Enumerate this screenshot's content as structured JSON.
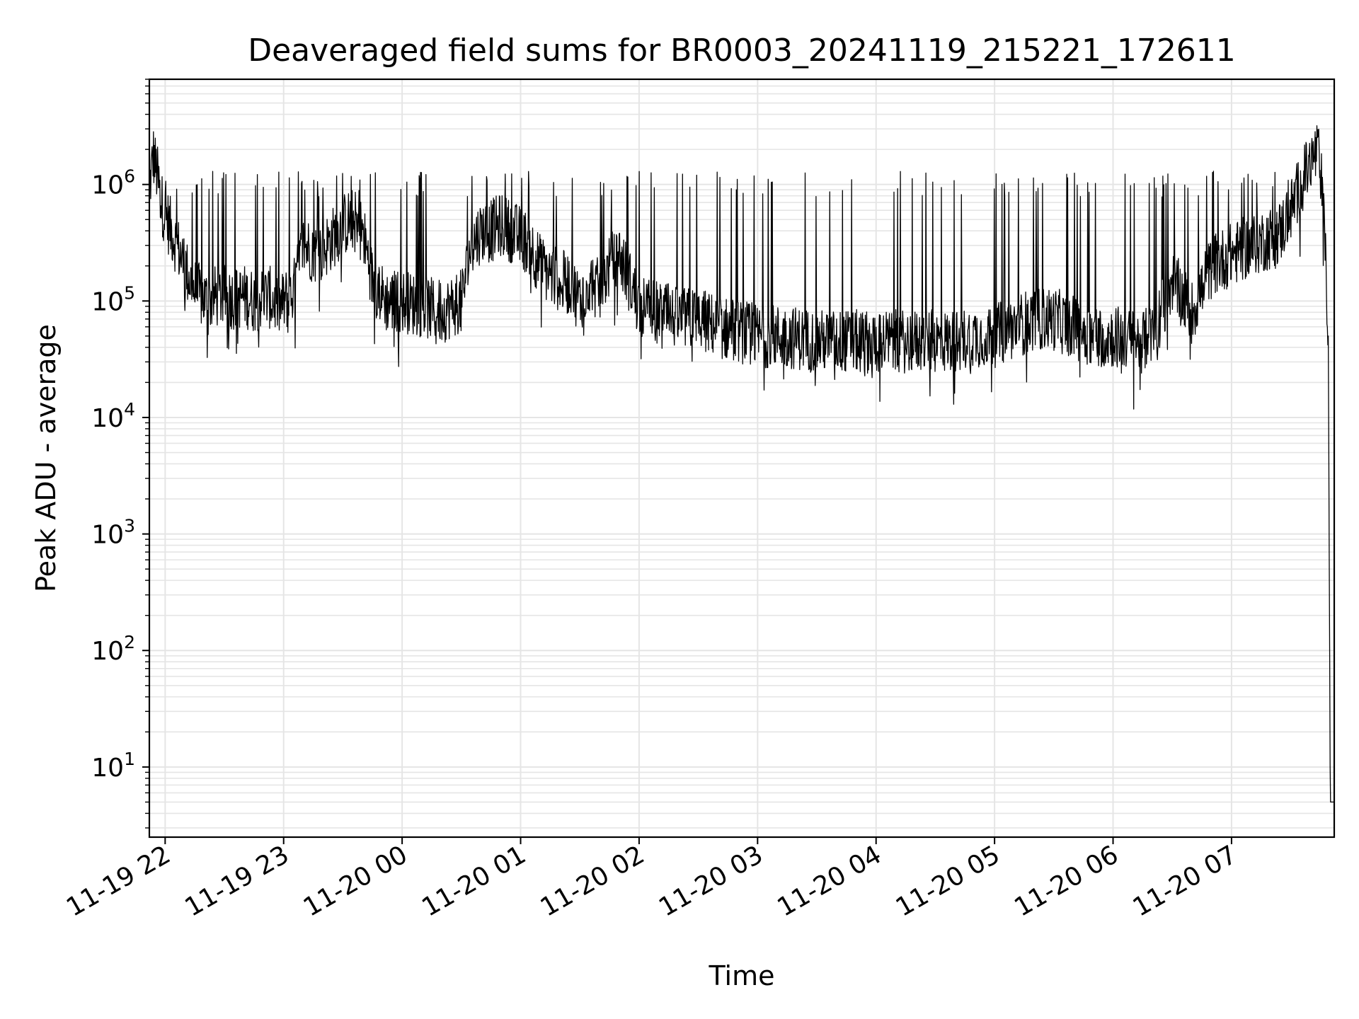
{
  "chart_data": {
    "type": "line",
    "title": "Deaveraged field sums for BR0003_20241119_215221_172611",
    "xlabel": "Time",
    "ylabel": "Peak ADU - average",
    "yscale": "log",
    "ylim": [
      2.5,
      8000000
    ],
    "xlim": [
      "2024-11-19 21:52",
      "2024-11-20 07:52"
    ],
    "grid": true,
    "line_color": "#000000",
    "grid_color": "#e5e5e5",
    "x_ticks": [
      {
        "value": "2024-11-19 22:00",
        "label": "11-19 22"
      },
      {
        "value": "2024-11-19 23:00",
        "label": "11-19 23"
      },
      {
        "value": "2024-11-20 00:00",
        "label": "11-20 00"
      },
      {
        "value": "2024-11-20 01:00",
        "label": "11-20 01"
      },
      {
        "value": "2024-11-20 02:00",
        "label": "11-20 02"
      },
      {
        "value": "2024-11-20 03:00",
        "label": "11-20 03"
      },
      {
        "value": "2024-11-20 04:00",
        "label": "11-20 04"
      },
      {
        "value": "2024-11-20 05:00",
        "label": "11-20 05"
      },
      {
        "value": "2024-11-20 06:00",
        "label": "11-20 06"
      },
      {
        "value": "2024-11-20 07:00",
        "label": "11-20 07"
      }
    ],
    "y_ticks": [
      {
        "value": 10,
        "base": "10",
        "exp": "1"
      },
      {
        "value": 100,
        "base": "10",
        "exp": "2"
      },
      {
        "value": 1000,
        "base": "10",
        "exp": "3"
      },
      {
        "value": 10000,
        "base": "10",
        "exp": "4"
      },
      {
        "value": 100000,
        "base": "10",
        "exp": "5"
      },
      {
        "value": 1000000,
        "base": "10",
        "exp": "6"
      }
    ],
    "series": [
      {
        "x": [
          "2024-11-19 21:52",
          "2024-11-19 21:54",
          "2024-11-19 21:56",
          "2024-11-19 21:58",
          "2024-11-19 22:02",
          "2024-11-19 22:06",
          "2024-11-19 22:10",
          "2024-11-19 22:14",
          "2024-11-19 22:18",
          "2024-11-19 22:22",
          "2024-11-19 22:26",
          "2024-11-19 22:30",
          "2024-11-19 22:35",
          "2024-11-19 22:40",
          "2024-11-19 22:45",
          "2024-11-19 22:52",
          "2024-11-19 22:58",
          "2024-11-19 23:05",
          "2024-11-19 23:10",
          "2024-11-19 23:18",
          "2024-11-19 23:25",
          "2024-11-19 23:30",
          "2024-11-19 23:35",
          "2024-11-19 23:40",
          "2024-11-19 23:45",
          "2024-11-19 23:52",
          "2024-11-20 00:00",
          "2024-11-20 00:10",
          "2024-11-20 00:20",
          "2024-11-20 00:30",
          "2024-11-20 00:35",
          "2024-11-20 00:40",
          "2024-11-20 00:45",
          "2024-11-20 00:50",
          "2024-11-20 00:55",
          "2024-11-20 01:00",
          "2024-11-20 01:05",
          "2024-11-20 01:10",
          "2024-11-20 01:15",
          "2024-11-20 01:20",
          "2024-11-20 01:25",
          "2024-11-20 01:30",
          "2024-11-20 01:35",
          "2024-11-20 01:40",
          "2024-11-20 01:45",
          "2024-11-20 01:50",
          "2024-11-20 01:55",
          "2024-11-20 02:00",
          "2024-11-20 02:10",
          "2024-11-20 02:20",
          "2024-11-20 02:30",
          "2024-11-20 02:40",
          "2024-11-20 02:50",
          "2024-11-20 03:00",
          "2024-11-20 03:10",
          "2024-11-20 03:20",
          "2024-11-20 03:30",
          "2024-11-20 03:40",
          "2024-11-20 03:50",
          "2024-11-20 04:00",
          "2024-11-20 04:10",
          "2024-11-20 04:20",
          "2024-11-20 04:30",
          "2024-11-20 04:40",
          "2024-11-20 04:50",
          "2024-11-20 05:00",
          "2024-11-20 05:10",
          "2024-11-20 05:20",
          "2024-11-20 05:30",
          "2024-11-20 05:40",
          "2024-11-20 05:50",
          "2024-11-20 06:00",
          "2024-11-20 06:10",
          "2024-11-20 06:15",
          "2024-11-20 06:20",
          "2024-11-20 06:30",
          "2024-11-20 06:40",
          "2024-11-20 06:50",
          "2024-11-20 07:00",
          "2024-11-20 07:10",
          "2024-11-20 07:20",
          "2024-11-20 07:25",
          "2024-11-20 07:30",
          "2024-11-20 07:35",
          "2024-11-20 07:40",
          "2024-11-20 07:43",
          "2024-11-20 07:45",
          "2024-11-20 07:47",
          "2024-11-20 07:49",
          "2024-11-20 07:50",
          "2024-11-20 07:52"
        ],
        "y": [
          900000,
          1800000,
          1200000,
          700000,
          450000,
          300000,
          200000,
          130000,
          110000,
          100000,
          110000,
          110000,
          105000,
          110000,
          100000,
          110000,
          90000,
          120000,
          300000,
          250000,
          350000,
          450000,
          500000,
          400000,
          150000,
          100000,
          100000,
          90000,
          80000,
          100000,
          300000,
          400000,
          400000,
          450000,
          400000,
          350000,
          300000,
          200000,
          170000,
          150000,
          140000,
          100000,
          150000,
          120000,
          200000,
          250000,
          150000,
          90000,
          80000,
          70000,
          70000,
          60000,
          55000,
          50000,
          50000,
          48000,
          45000,
          45000,
          45000,
          45000,
          45000,
          45000,
          45000,
          45000,
          50000,
          50000,
          60000,
          70000,
          70000,
          60000,
          50000,
          50000,
          45000,
          45000,
          50000,
          150000,
          80000,
          200000,
          250000,
          300000,
          350000,
          400000,
          600000,
          1000000,
          1500000,
          1900000,
          1400000,
          400000,
          50000,
          5,
          5
        ]
      }
    ],
    "spikes_peak": 1300000
  }
}
